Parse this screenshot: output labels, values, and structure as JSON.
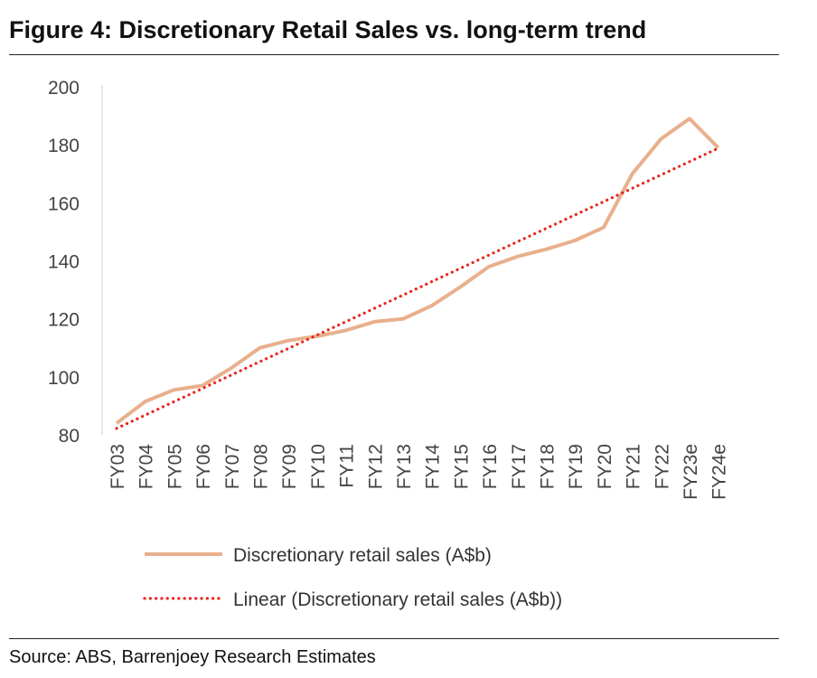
{
  "figure": {
    "title": "Figure 4: Discretionary Retail Sales vs. long-term trend",
    "source": "Source: ABS, Barrenjoey Research Estimates"
  },
  "chart_data": {
    "type": "line",
    "categories": [
      "FY03",
      "FY04",
      "FY05",
      "FY06",
      "FY07",
      "FY08",
      "FY09",
      "FY10",
      "FY11",
      "FY12",
      "FY13",
      "FY14",
      "FY15",
      "FY16",
      "FY17",
      "FY18",
      "FY19",
      "FY20",
      "FY21",
      "FY22",
      "FY23e",
      "FY24e"
    ],
    "ylim": [
      80,
      200
    ],
    "yticks": [
      80,
      100,
      120,
      140,
      160,
      180,
      200
    ],
    "grid": false,
    "legend_position": "bottom",
    "series": [
      {
        "name": "Discretionary retail sales (A$b)",
        "style": "solid",
        "color": "#E8B08C",
        "values": [
          84,
          91.5,
          95.5,
          97,
          103,
          110,
          112.5,
          114,
          116,
          119,
          120,
          124.5,
          131,
          138,
          141.5,
          144,
          147,
          151.5,
          170,
          182,
          189,
          179
        ]
      },
      {
        "name": "Linear (Discretionary retail sales (A$b))",
        "style": "dotted",
        "color": "#E8261C",
        "values": [
          82.2,
          86.8,
          91.4,
          96.0,
          100.6,
          105.2,
          109.8,
          114.4,
          119.0,
          123.6,
          128.2,
          132.8,
          137.4,
          142.0,
          146.6,
          151.2,
          155.8,
          160.4,
          165.0,
          169.6,
          174.2,
          178.8
        ]
      }
    ]
  }
}
